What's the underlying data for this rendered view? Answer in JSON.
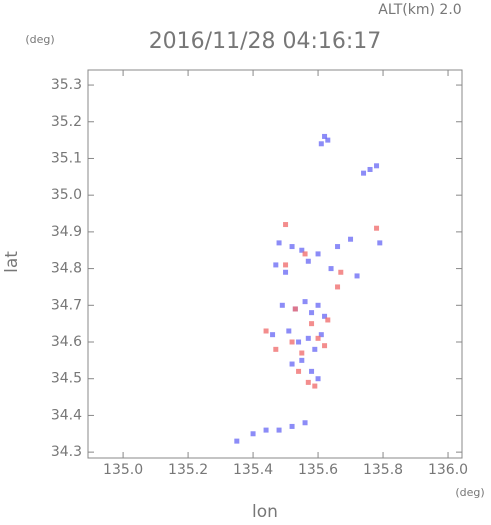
{
  "chart_data": {
    "type": "scatter",
    "title": "2016/11/28 04:16:17",
    "subtitle": "ALT(km) 2.0",
    "y_unit": "(deg)",
    "x_unit": "(deg)",
    "x_label": "lon",
    "y_label": "lat",
    "xlim": [
      134.892,
      136.043
    ],
    "ylim": [
      34.284,
      35.341
    ],
    "xticks": [
      {
        "value": 135.0,
        "label": "135.0"
      },
      135.2,
      135.4,
      135.6,
      135.8,
      {
        "value": 136.0,
        "label": "136.0"
      }
    ],
    "yticks": [
      34.3,
      34.4,
      34.5,
      34.6,
      34.7,
      34.8,
      34.9,
      {
        "value": 35.0,
        "label": "35.0"
      },
      35.1,
      35.2,
      35.3
    ],
    "series": [
      {
        "color": "#6f6ff5",
        "x": [
          135.62,
          135.61,
          135.63,
          135.76,
          135.78,
          135.74,
          135.48,
          135.52,
          135.55,
          135.6,
          135.66,
          135.7,
          135.47,
          135.5,
          135.57,
          135.64,
          135.72,
          135.79,
          135.49,
          135.53,
          135.56,
          135.58,
          135.6,
          135.62,
          135.46,
          135.51,
          135.54,
          135.57,
          135.59,
          135.61,
          135.52,
          135.55,
          135.58,
          135.6,
          135.4,
          135.44,
          135.48,
          135.52,
          135.56,
          135.35
        ],
        "values": [
          35.16,
          35.14,
          35.15,
          35.07,
          35.08,
          35.06,
          34.87,
          34.86,
          34.85,
          34.84,
          34.86,
          34.88,
          34.81,
          34.79,
          34.82,
          34.8,
          34.78,
          34.87,
          34.7,
          34.69,
          34.71,
          34.68,
          34.7,
          34.67,
          34.62,
          34.63,
          34.6,
          34.61,
          34.58,
          34.62,
          34.54,
          34.55,
          34.52,
          34.5,
          34.35,
          34.36,
          34.36,
          34.37,
          34.38,
          34.33
        ]
      },
      {
        "color": "#f07070",
        "x": [
          135.5,
          135.56,
          135.67,
          135.78,
          135.44,
          135.53,
          135.58,
          135.63,
          135.47,
          135.52,
          135.55,
          135.6,
          135.62,
          135.54,
          135.57,
          135.59,
          135.5,
          135.66
        ],
        "values": [
          34.92,
          34.84,
          34.79,
          34.91,
          34.63,
          34.69,
          34.65,
          34.66,
          34.58,
          34.6,
          34.57,
          34.61,
          34.59,
          34.52,
          34.49,
          34.48,
          34.81,
          34.75
        ]
      }
    ]
  }
}
